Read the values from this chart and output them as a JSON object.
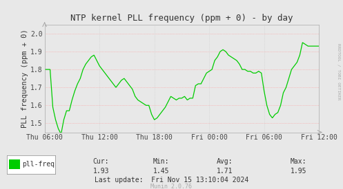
{
  "title": "NTP kernel PLL frequency (ppm + 0) - by day",
  "ylabel": "PLL frequency (ppm + 0)",
  "background_color": "#e8e8e8",
  "plot_bg_color": "#e8e8e8",
  "grid_color_h": "#ff9999",
  "grid_color_v": "#cccccc",
  "line_color": "#00cc00",
  "ylim": [
    1.45,
    2.05
  ],
  "yticks": [
    1.5,
    1.6,
    1.7,
    1.8,
    1.9,
    2.0
  ],
  "xtick_labels": [
    "Thu 06:00",
    "Thu 12:00",
    "Thu 18:00",
    "Fri 00:00",
    "Fri 06:00",
    "Fri 12:00"
  ],
  "stats_cur": "1.93",
  "stats_min": "1.45",
  "stats_avg": "1.71",
  "stats_max": "1.95",
  "legend_label": "pll-freq",
  "legend_color": "#00cc00",
  "last_update": "Last update:  Fri Nov 15 13:10:04 2024",
  "munin_version": "Munin 2.0.76",
  "rrdtool_label": "RRDTOOL / TOBI OETIKER",
  "x_values": [
    0,
    1,
    2,
    3,
    4,
    5,
    6,
    7,
    8,
    9,
    10,
    11,
    12,
    13,
    14,
    15,
    16,
    17,
    18,
    19,
    20,
    21,
    22,
    23,
    24,
    25,
    26,
    27,
    28,
    29,
    30,
    31,
    32,
    33,
    34,
    35,
    36,
    37,
    38,
    39,
    40,
    41,
    42,
    43,
    44,
    45,
    46,
    47,
    48,
    49,
    50,
    51,
    52,
    53,
    54,
    55,
    56,
    57,
    58,
    59,
    60,
    61,
    62,
    63,
    64,
    65,
    66,
    67,
    68,
    69,
    70,
    71,
    72,
    73,
    74,
    75,
    76,
    77,
    78,
    79,
    80,
    81,
    82,
    83,
    84,
    85,
    86,
    87,
    88,
    89,
    90,
    91,
    92,
    93,
    94,
    95,
    96,
    97,
    98,
    99,
    100
  ],
  "y_values": [
    1.8,
    1.8,
    1.8,
    1.59,
    1.52,
    1.47,
    1.44,
    1.52,
    1.57,
    1.57,
    1.63,
    1.68,
    1.72,
    1.75,
    1.8,
    1.83,
    1.85,
    1.87,
    1.88,
    1.85,
    1.82,
    1.8,
    1.78,
    1.76,
    1.74,
    1.72,
    1.7,
    1.72,
    1.74,
    1.75,
    1.73,
    1.71,
    1.69,
    1.65,
    1.63,
    1.62,
    1.61,
    1.6,
    1.6,
    1.55,
    1.52,
    1.53,
    1.55,
    1.57,
    1.59,
    1.62,
    1.65,
    1.64,
    1.63,
    1.64,
    1.64,
    1.65,
    1.63,
    1.64,
    1.64,
    1.71,
    1.72,
    1.72,
    1.75,
    1.78,
    1.79,
    1.8,
    1.85,
    1.87,
    1.9,
    1.91,
    1.9,
    1.88,
    1.87,
    1.86,
    1.85,
    1.83,
    1.8,
    1.8,
    1.79,
    1.79,
    1.78,
    1.78,
    1.79,
    1.78,
    1.68,
    1.6,
    1.55,
    1.53,
    1.55,
    1.56,
    1.6,
    1.67,
    1.7,
    1.75,
    1.8,
    1.82,
    1.84,
    1.88,
    1.95,
    1.94,
    1.93,
    1.93,
    1.93,
    1.93,
    1.93
  ]
}
